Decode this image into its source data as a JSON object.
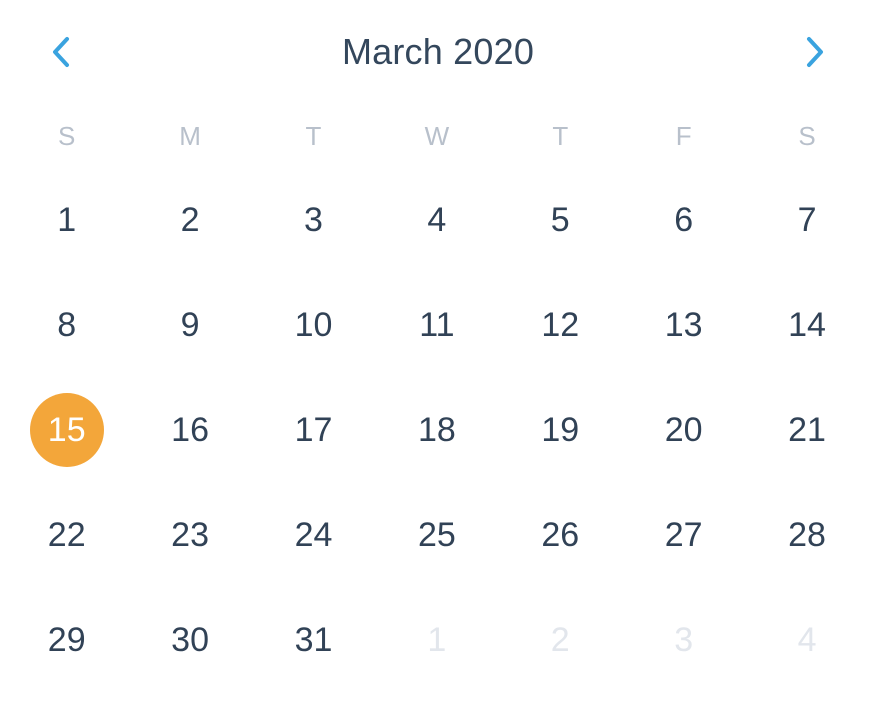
{
  "calendar": {
    "month_label": "March 2020",
    "nav": {
      "prev_icon": "chevron-left-icon",
      "next_icon": "chevron-right-icon",
      "accent_color": "#3aa3df"
    },
    "weekdays": [
      "S",
      "M",
      "T",
      "W",
      "T",
      "F",
      "S"
    ],
    "days": [
      {
        "label": "1",
        "state": "current"
      },
      {
        "label": "2",
        "state": "current"
      },
      {
        "label": "3",
        "state": "current"
      },
      {
        "label": "4",
        "state": "current"
      },
      {
        "label": "5",
        "state": "current"
      },
      {
        "label": "6",
        "state": "current"
      },
      {
        "label": "7",
        "state": "current"
      },
      {
        "label": "8",
        "state": "current"
      },
      {
        "label": "9",
        "state": "current"
      },
      {
        "label": "10",
        "state": "current"
      },
      {
        "label": "11",
        "state": "current"
      },
      {
        "label": "12",
        "state": "current"
      },
      {
        "label": "13",
        "state": "current"
      },
      {
        "label": "14",
        "state": "current"
      },
      {
        "label": "15",
        "state": "selected"
      },
      {
        "label": "16",
        "state": "current"
      },
      {
        "label": "17",
        "state": "current"
      },
      {
        "label": "18",
        "state": "current"
      },
      {
        "label": "19",
        "state": "current"
      },
      {
        "label": "20",
        "state": "current"
      },
      {
        "label": "21",
        "state": "current"
      },
      {
        "label": "22",
        "state": "current"
      },
      {
        "label": "23",
        "state": "current"
      },
      {
        "label": "24",
        "state": "current"
      },
      {
        "label": "25",
        "state": "current"
      },
      {
        "label": "26",
        "state": "current"
      },
      {
        "label": "27",
        "state": "current"
      },
      {
        "label": "28",
        "state": "current"
      },
      {
        "label": "29",
        "state": "current"
      },
      {
        "label": "30",
        "state": "current"
      },
      {
        "label": "31",
        "state": "current"
      },
      {
        "label": "1",
        "state": "outside"
      },
      {
        "label": "2",
        "state": "outside"
      },
      {
        "label": "3",
        "state": "outside"
      },
      {
        "label": "4",
        "state": "outside"
      }
    ],
    "colors": {
      "selected": "#f3a63a",
      "text": "#314256",
      "weekday": "#b8c0cb",
      "outside": "#e2e6ec"
    }
  }
}
